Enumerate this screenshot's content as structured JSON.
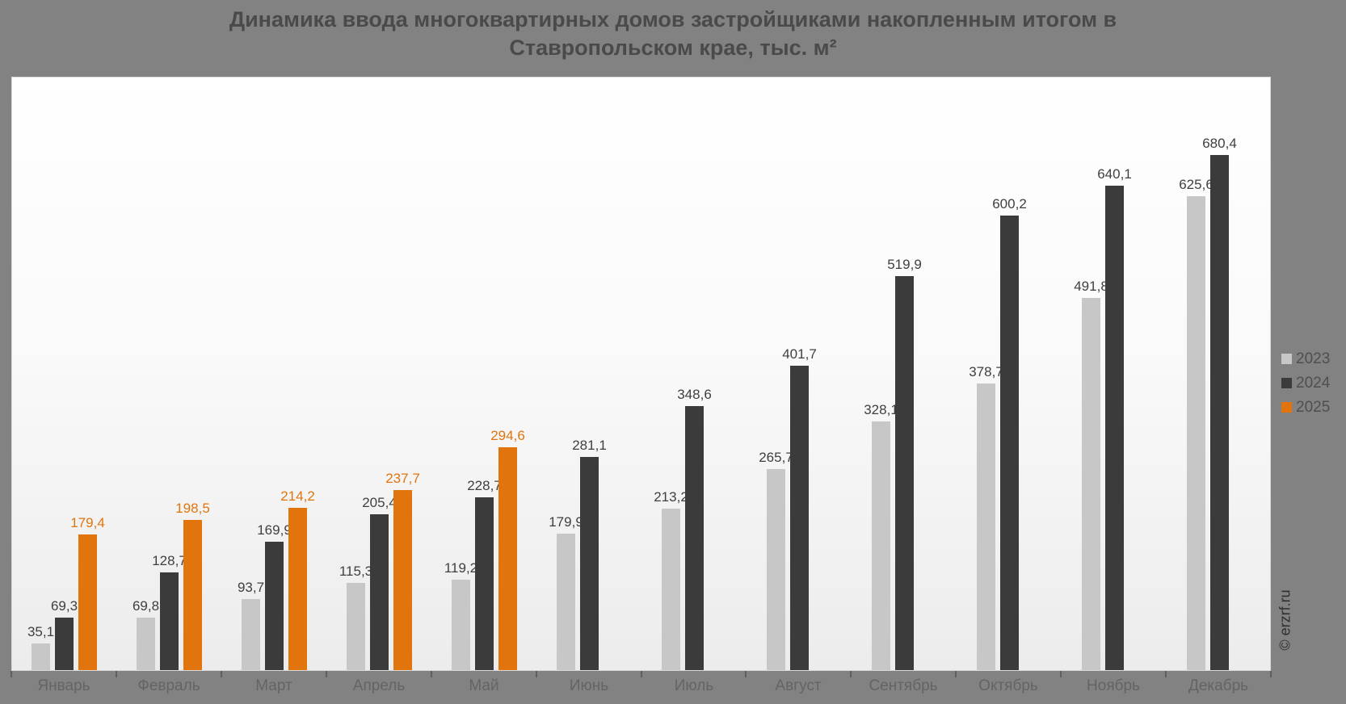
{
  "title": {
    "line1": "Динамика ввода многоквартирных домов застройщиками накопленным итогом в",
    "line2": "Ставропольском крае, тыс. м²"
  },
  "watermark": {
    "text": "© erzrf.ru"
  },
  "legend": {
    "position": "right",
    "items": [
      {
        "label": "2023",
        "color": "#c7c7c7"
      },
      {
        "label": "2024",
        "color": "#3b3b3b"
      },
      {
        "label": "2025",
        "color": "#e2740e"
      }
    ]
  },
  "colors": {
    "background": "#828282",
    "title_text": "#4a4a4a",
    "axis_label_text": "#646464",
    "data_label_text": "#3f3f3f",
    "accent_orange": "#e2740e",
    "series_2023": "#c7c7c7",
    "series_2024": "#3b3b3b",
    "series_2025": "#e2740e"
  },
  "chart_data": {
    "type": "bar",
    "title": "Динамика ввода многоквартирных домов застройщиками накопленным итогом в Ставропольском крае, тыс. м²",
    "xlabel": "",
    "ylabel": "",
    "ylim": [
      0,
      727
    ],
    "grid": false,
    "legend_position": "right",
    "decimal_separator": ",",
    "categories": [
      "Январь",
      "Февраль",
      "Март",
      "Апрель",
      "Май",
      "Июнь",
      "Июль",
      "Август",
      "Сентябрь",
      "Октябрь",
      "Ноябрь",
      "Декабрь"
    ],
    "series": [
      {
        "name": "2023",
        "color": "#c7c7c7",
        "label_color": "#3f3f3f",
        "values": [
          35.1,
          69.8,
          93.7,
          115.3,
          119.2,
          179.9,
          213.2,
          265.7,
          328.1,
          378.7,
          491.8,
          625.6
        ]
      },
      {
        "name": "2024",
        "color": "#3b3b3b",
        "label_color": "#3f3f3f",
        "values": [
          69.3,
          128.7,
          169.9,
          205.4,
          228.7,
          281.1,
          348.6,
          401.7,
          519.9,
          600.2,
          640.1,
          680.4
        ]
      },
      {
        "name": "2025",
        "color": "#e2740e",
        "label_color": "#e2740e",
        "values": [
          179.4,
          198.5,
          214.2,
          237.7,
          294.6,
          null,
          null,
          null,
          null,
          null,
          null,
          null
        ]
      }
    ]
  }
}
